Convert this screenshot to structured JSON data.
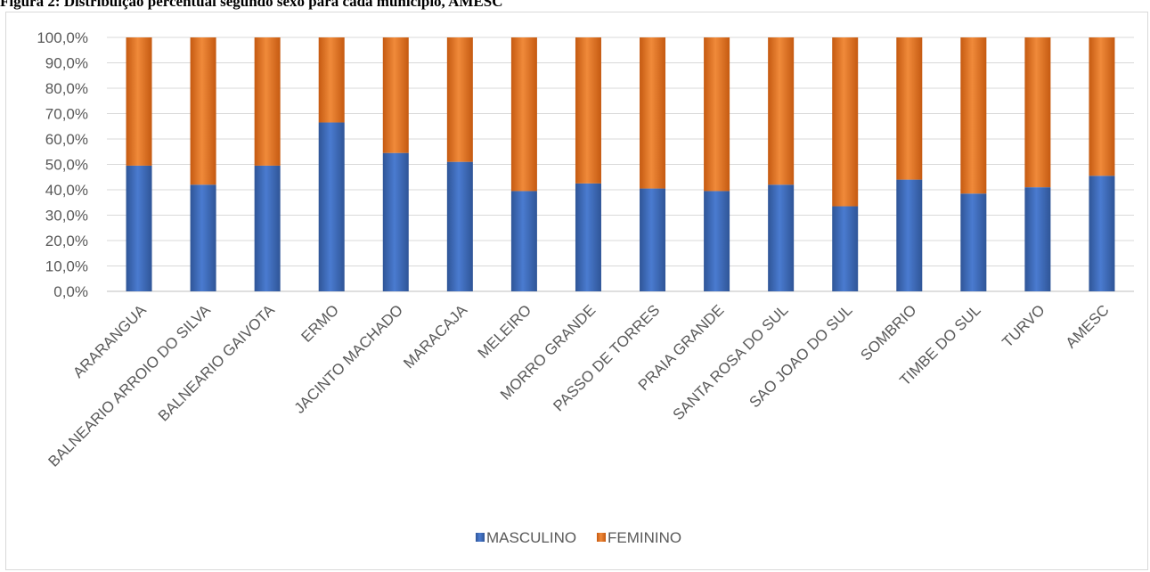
{
  "figure": {
    "title": "Figura 2: Distribuição percentual segundo sexo para cada município, AMESC"
  },
  "chart_data": {
    "type": "bar",
    "stacked": true,
    "percent": true,
    "categories": [
      "ARARANGUA",
      "BALNEARIO ARROIO DO SILVA",
      "BALNEARIO GAIVOTA",
      "ERMO",
      "JACINTO MACHADO",
      "MARACAJA",
      "MELEIRO",
      "MORRO GRANDE",
      "PASSO DE TORRES",
      "PRAIA GRANDE",
      "SANTA ROSA DO SUL",
      "SAO JOAO DO SUL",
      "SOMBRIO",
      "TIMBE DO SUL",
      "TURVO",
      "AMESC"
    ],
    "series": [
      {
        "name": "MASCULINO",
        "color": "#4472c4",
        "values": [
          49.5,
          42.0,
          49.5,
          66.5,
          54.5,
          51.0,
          39.5,
          42.5,
          40.5,
          39.5,
          42.0,
          33.5,
          44.0,
          38.5,
          41.0,
          45.5
        ]
      },
      {
        "name": "FEMININO",
        "color": "#ed7d31",
        "values": [
          50.5,
          58.0,
          50.5,
          33.5,
          45.5,
          49.0,
          60.5,
          57.5,
          59.5,
          60.5,
          58.0,
          66.5,
          56.0,
          61.5,
          59.0,
          54.5
        ]
      }
    ],
    "yticks": [
      "0,0%",
      "10,0%",
      "20,0%",
      "30,0%",
      "40,0%",
      "50,0%",
      "60,0%",
      "70,0%",
      "80,0%",
      "90,0%",
      "100,0%"
    ],
    "ylim": [
      0,
      100
    ],
    "grid": true,
    "legend_position": "bottom"
  }
}
